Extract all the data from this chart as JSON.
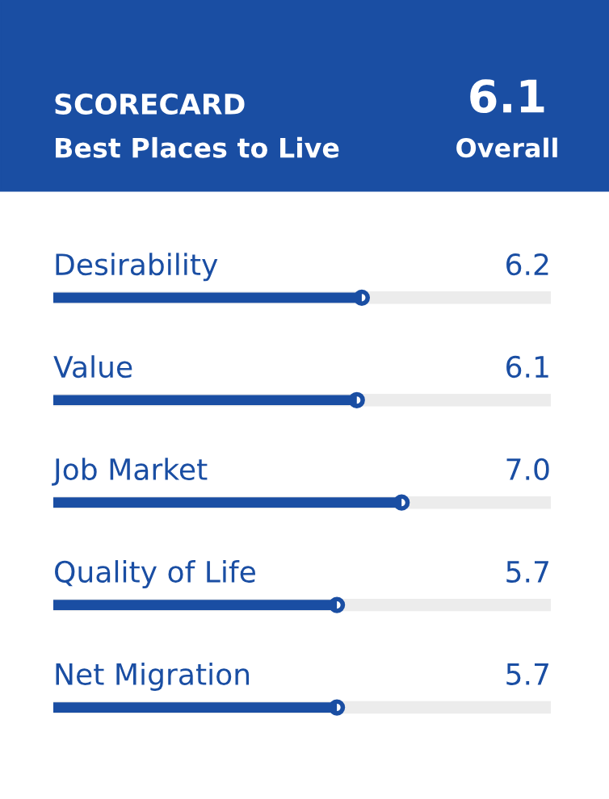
{
  "chart_data": {
    "type": "bar",
    "orientation": "horizontal",
    "title": "SCORECARD",
    "subtitle": "Best Places to Live",
    "annotations": [
      "6.1",
      "Overall"
    ],
    "categories": [
      "Desirability",
      "Value",
      "Job Market",
      "Quality of Life",
      "Net Migration"
    ],
    "values": [
      6.2,
      6.1,
      7.0,
      5.7,
      5.7
    ],
    "color": "#1a4ea3",
    "value_labels": [
      "6.2",
      "6.1",
      "7.0",
      "5.7",
      "5.7"
    ],
    "xlim": [
      0,
      10
    ],
    "tick_labels": false
  }
}
